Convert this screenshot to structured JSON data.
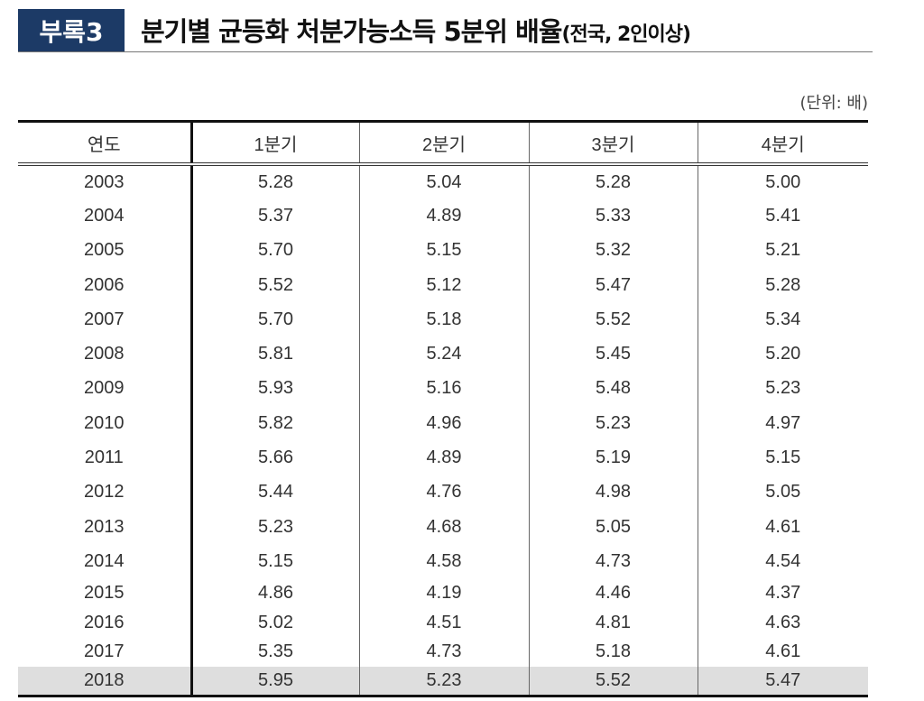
{
  "header": {
    "badge": "부록3",
    "title": "분기별 균등화 처분가능소득 5분위 배율",
    "subtitle": "(전국, 2인이상)",
    "badge_color": "#1c3a66"
  },
  "unit": "(단위: 배)",
  "table": {
    "columns": [
      "연도",
      "1분기",
      "2분기",
      "3분기",
      "4분기"
    ],
    "rows": [
      [
        "2003",
        "5.28",
        "5.04",
        "5.28",
        "5.00"
      ],
      [
        "2004",
        "5.37",
        "4.89",
        "5.33",
        "5.41"
      ],
      [
        "2005",
        "5.70",
        "5.15",
        "5.32",
        "5.21"
      ],
      [
        "2006",
        "5.52",
        "5.12",
        "5.47",
        "5.28"
      ],
      [
        "2007",
        "5.70",
        "5.18",
        "5.52",
        "5.34"
      ],
      [
        "2008",
        "5.81",
        "5.24",
        "5.45",
        "5.20"
      ],
      [
        "2009",
        "5.93",
        "5.16",
        "5.48",
        "5.23"
      ],
      [
        "2010",
        "5.82",
        "4.96",
        "5.23",
        "4.97"
      ],
      [
        "2011",
        "5.66",
        "4.89",
        "5.19",
        "5.15"
      ],
      [
        "2012",
        "5.44",
        "4.76",
        "4.98",
        "5.05"
      ],
      [
        "2013",
        "5.23",
        "4.68",
        "5.05",
        "4.61"
      ],
      [
        "2014",
        "5.15",
        "4.58",
        "4.73",
        "4.54"
      ],
      [
        "2015",
        "4.86",
        "4.19",
        "4.46",
        "4.37"
      ],
      [
        "2016",
        "5.02",
        "4.51",
        "4.81",
        "4.63"
      ],
      [
        "2017",
        "5.35",
        "4.73",
        "5.18",
        "4.61"
      ],
      [
        "2018",
        "5.95",
        "5.23",
        "5.52",
        "5.47"
      ]
    ],
    "highlighted_row": "2018",
    "highlight_color": "#dedede"
  }
}
